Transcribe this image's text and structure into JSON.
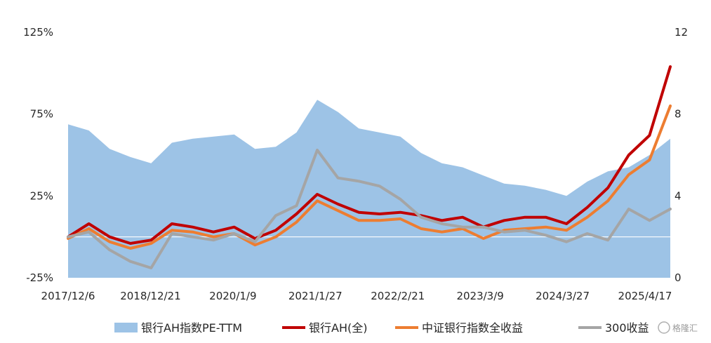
{
  "chart_data": {
    "type": "line",
    "title": "",
    "legend_position": "bottom",
    "grid": false,
    "x_tick_labels": [
      "2017/12/6",
      "2018/12/21",
      "2020/1/9",
      "2021/1/27",
      "2022/2/21",
      "2023/3/9",
      "2024/3/27",
      "2025/4/17"
    ],
    "y_left": {
      "tick_labels": [
        "125%",
        "75%",
        "25%",
        "-25%"
      ],
      "range": [
        -0.25,
        1.25
      ]
    },
    "y_right": {
      "tick_labels": [
        "12",
        "8",
        "4",
        "0"
      ],
      "range": [
        0,
        12
      ]
    },
    "x": [
      "2017/12/6",
      "2018/3/1",
      "2018/6/1",
      "2018/9/1",
      "2018/12/21",
      "2019/3/1",
      "2019/6/1",
      "2019/9/1",
      "2020/1/9",
      "2020/4/1",
      "2020/7/1",
      "2020/10/1",
      "2021/1/27",
      "2021/4/1",
      "2021/7/1",
      "2021/10/1",
      "2022/2/21",
      "2022/5/1",
      "2022/8/1",
      "2022/11/1",
      "2023/3/9",
      "2023/6/1",
      "2023/9/1",
      "2023/12/1",
      "2024/3/27",
      "2024/6/1",
      "2024/9/1",
      "2024/12/1",
      "2025/4/17",
      "2025/6/15"
    ],
    "series": [
      {
        "name": "银行AH指数PE-TTM",
        "axis": "right",
        "style": "area",
        "color": "#9dc3e6",
        "values": [
          7.5,
          7.2,
          6.3,
          5.9,
          5.6,
          6.6,
          6.8,
          6.9,
          7.0,
          6.3,
          6.4,
          7.1,
          8.7,
          8.1,
          7.3,
          7.1,
          6.9,
          6.1,
          5.6,
          5.4,
          5.0,
          4.6,
          4.5,
          4.3,
          4.0,
          4.7,
          5.2,
          5.4,
          6.0,
          6.8
        ]
      },
      {
        "name": "银行AH(全)",
        "axis": "left",
        "style": "line",
        "color": "#c00000",
        "values": [
          0.0,
          0.08,
          0.0,
          -0.04,
          -0.02,
          0.08,
          0.06,
          0.03,
          0.06,
          -0.01,
          0.04,
          0.14,
          0.26,
          0.2,
          0.15,
          0.14,
          0.15,
          0.13,
          0.1,
          0.12,
          0.06,
          0.1,
          0.12,
          0.12,
          0.08,
          0.18,
          0.3,
          0.5,
          0.62,
          1.04
        ]
      },
      {
        "name": "中证银行指数全收益",
        "axis": "left",
        "style": "line",
        "color": "#ed7d31",
        "values": [
          -0.01,
          0.05,
          -0.03,
          -0.07,
          -0.04,
          0.04,
          0.03,
          0.0,
          0.02,
          -0.05,
          0.0,
          0.09,
          0.22,
          0.16,
          0.1,
          0.1,
          0.11,
          0.05,
          0.03,
          0.05,
          -0.01,
          0.04,
          0.05,
          0.06,
          0.04,
          0.12,
          0.22,
          0.38,
          0.47,
          0.8
        ]
      },
      {
        "name": "300收益",
        "axis": "left",
        "style": "line",
        "color": "#a5a5a5",
        "values": [
          0.0,
          0.03,
          -0.08,
          -0.15,
          -0.19,
          0.02,
          0.0,
          -0.02,
          0.02,
          -0.03,
          0.13,
          0.19,
          0.53,
          0.36,
          0.34,
          0.31,
          0.23,
          0.12,
          0.08,
          0.06,
          0.06,
          0.03,
          0.04,
          0.01,
          -0.03,
          0.02,
          -0.02,
          0.17,
          0.1,
          0.17
        ]
      }
    ]
  },
  "watermark": "格隆汇"
}
